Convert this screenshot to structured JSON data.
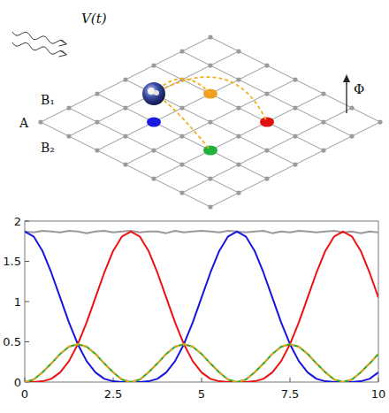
{
  "diagram": {
    "drive_label": "V(t)",
    "flux_label": "Φ",
    "site_labels": [
      "B₁",
      "A",
      "B₂"
    ]
  },
  "chart_data": {
    "type": "line",
    "x": [
      0,
      0.25,
      0.5,
      0.75,
      1,
      1.25,
      1.5,
      1.75,
      2,
      2.25,
      2.5,
      2.75,
      3,
      3.25,
      3.5,
      3.75,
      4,
      4.25,
      4.5,
      4.75,
      5,
      5.25,
      5.5,
      5.75,
      6,
      6.25,
      6.5,
      6.75,
      7,
      7.25,
      7.5,
      7.75,
      8,
      8.25,
      8.5,
      8.75,
      9,
      9.25,
      9.5,
      9.75,
      10
    ],
    "xlim": [
      0,
      10
    ],
    "xticks": [
      0,
      2.5,
      5,
      7.5,
      10
    ],
    "ylim": [
      0,
      2
    ],
    "yticks": [
      0,
      0.5,
      1,
      1.5,
      2
    ],
    "series": [
      {
        "color": "#999999",
        "line_style": "solid",
        "values": [
          1.87,
          1.86,
          1.88,
          1.87,
          1.86,
          1.88,
          1.87,
          1.85,
          1.87,
          1.88,
          1.86,
          1.87,
          1.88,
          1.86,
          1.87,
          1.87,
          1.85,
          1.88,
          1.86,
          1.87,
          1.88,
          1.87,
          1.86,
          1.88,
          1.87,
          1.86,
          1.87,
          1.88,
          1.85,
          1.87,
          1.86,
          1.88,
          1.87,
          1.86,
          1.87,
          1.88,
          1.86,
          1.87,
          1.85,
          1.87,
          1.86
        ]
      },
      {
        "color": "#1515e0",
        "line_style": "solid",
        "values": [
          1.87,
          1.81,
          1.63,
          1.36,
          1.05,
          0.74,
          0.47,
          0.26,
          0.12,
          0.04,
          0.01,
          0,
          0,
          0,
          0.01,
          0.04,
          0.12,
          0.26,
          0.47,
          0.74,
          1.05,
          1.36,
          1.63,
          1.81,
          1.87,
          1.81,
          1.63,
          1.36,
          1.05,
          0.74,
          0.47,
          0.26,
          0.12,
          0.04,
          0.01,
          0,
          0,
          0,
          0.01,
          0.04,
          0.12
        ]
      },
      {
        "color": "#ee1111",
        "line_style": "solid",
        "values": [
          0,
          0,
          0.01,
          0.04,
          0.12,
          0.26,
          0.47,
          0.74,
          1.05,
          1.36,
          1.63,
          1.81,
          1.87,
          1.81,
          1.63,
          1.36,
          1.05,
          0.74,
          0.47,
          0.26,
          0.12,
          0.04,
          0.01,
          0,
          0,
          0,
          0.01,
          0.04,
          0.12,
          0.26,
          0.47,
          0.74,
          1.05,
          1.36,
          1.63,
          1.81,
          1.87,
          1.81,
          1.63,
          1.36,
          1.05
        ]
      },
      {
        "color": "#22aa22",
        "line_style": "solid",
        "values": [
          0,
          0.03,
          0.12,
          0.23,
          0.35,
          0.44,
          0.47,
          0.44,
          0.35,
          0.23,
          0.12,
          0.03,
          0,
          0.03,
          0.12,
          0.23,
          0.35,
          0.44,
          0.47,
          0.44,
          0.35,
          0.23,
          0.12,
          0.03,
          0,
          0.03,
          0.12,
          0.23,
          0.35,
          0.44,
          0.47,
          0.44,
          0.35,
          0.23,
          0.12,
          0.03,
          0,
          0.03,
          0.12,
          0.23,
          0.35
        ]
      },
      {
        "color": "#f0a020",
        "line_style": "dashed",
        "values": [
          0,
          0.03,
          0.12,
          0.23,
          0.35,
          0.44,
          0.47,
          0.44,
          0.35,
          0.23,
          0.12,
          0.03,
          0,
          0.03,
          0.12,
          0.23,
          0.35,
          0.44,
          0.47,
          0.44,
          0.35,
          0.23,
          0.12,
          0.03,
          0,
          0.03,
          0.12,
          0.23,
          0.35,
          0.44,
          0.47,
          0.44,
          0.35,
          0.23,
          0.12,
          0.03,
          0,
          0.03,
          0.12,
          0.23,
          0.35
        ]
      }
    ]
  }
}
